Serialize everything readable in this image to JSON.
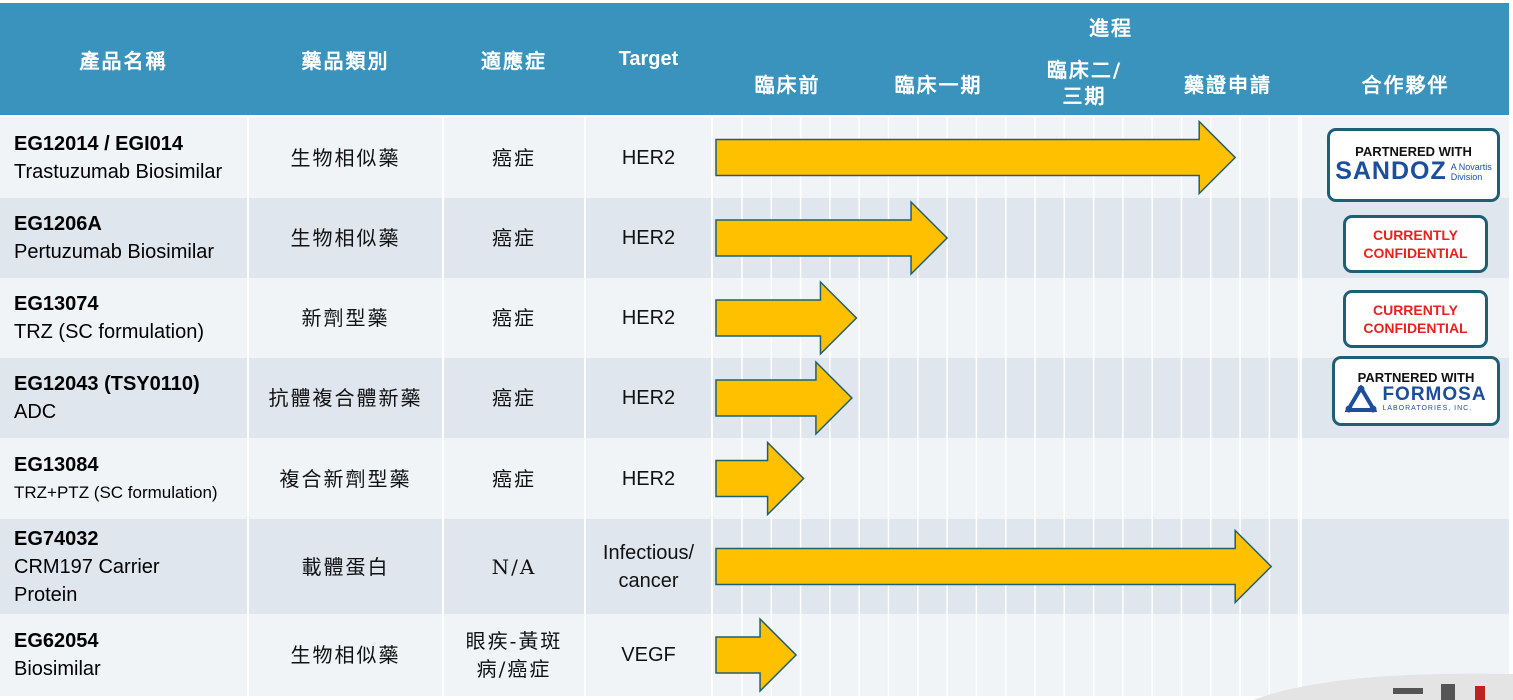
{
  "headers": {
    "product": "產品名稱",
    "category": "藥品類別",
    "indication": "適應症",
    "target": "Target",
    "progress": "進程",
    "phases": [
      "臨床前",
      "臨床一期",
      "臨床二/\n三期",
      "藥證申請"
    ],
    "partner": "合作夥伴"
  },
  "rows": [
    {
      "code": "EG12014 / EGI014",
      "desc": "Trastuzumab Biosimilar",
      "category": "生物相似藥",
      "indication": "癌症",
      "target": "HER2",
      "partner": "PARTNERED WITH SANDOZ"
    },
    {
      "code": "EG1206A",
      "desc": "Pertuzumab Biosimilar",
      "category": "生物相似藥",
      "indication": "癌症",
      "target": "HER2",
      "partner": "CURRENTLY CONFIDENTIAL"
    },
    {
      "code": "EG13074",
      "desc": "TRZ (SC formulation)",
      "category": "新劑型藥",
      "indication": "癌症",
      "target": "HER2",
      "partner": "CURRENTLY CONFIDENTIAL"
    },
    {
      "code": "EG12043 (TSY0110)",
      "desc": "ADC",
      "category": "抗體複合體新藥",
      "indication": "癌症",
      "target": "HER2",
      "partner": "PARTNERED WITH FORMOSA"
    },
    {
      "code": "EG13084",
      "desc": "TRZ+PTZ (SC formulation)",
      "category": "複合新劑型藥",
      "indication": "癌症",
      "target": "HER2",
      "partner": ""
    },
    {
      "code": "EG74032",
      "desc": "CRM197 Carrier\nProtein",
      "category": "載體蛋白",
      "indication": "N/A",
      "target": "Infectious/\ncancer",
      "partner": ""
    },
    {
      "code": "EG62054",
      "desc": "Biosimilar",
      "category": "生物相似藥",
      "indication": "眼疾-黃斑\n病/癌症",
      "target": "VEGF",
      "partner": ""
    }
  ],
  "progress_values": [
    3.55,
    1.55,
    0.95,
    0.92,
    0.6,
    3.8,
    0.55
  ],
  "badges": {
    "partnered_with": "PARTNERED WITH",
    "sandoz": "SANDOZ",
    "sandoz_sub": "A Novartis\nDivision",
    "confidential_line1": "CURRENTLY",
    "confidential_line2": "CONFIDENTIAL",
    "formosa": "FORMOSA",
    "formosa_sub": "LABORATORIES, INC."
  },
  "colors": {
    "header": "#3A93BC",
    "arrow": "#FFC000",
    "arrow_border": "#1F5F75",
    "badge_border": "#1F5F75",
    "confidential": "#E8231E",
    "sandoz": "#1B4F9C"
  }
}
